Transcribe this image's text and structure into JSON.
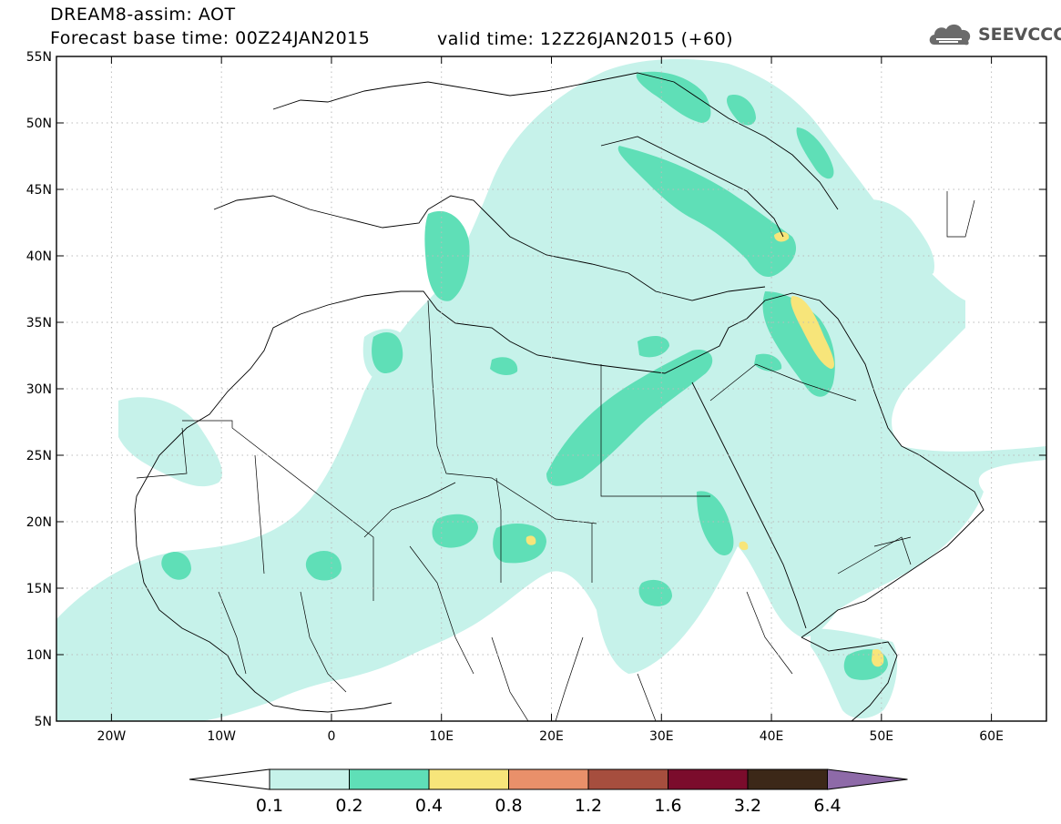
{
  "header": {
    "title_line1": "DREAM8-assim: AOT",
    "title_line2": "Forecast base time: 00Z24JAN2015",
    "valid_text": "valid time: 12Z26JAN2015 (+60)",
    "logo_text": "SEEVCCC",
    "logo_icon": "cloud-icon"
  },
  "map": {
    "lat_labels": [
      "55N",
      "50N",
      "45N",
      "40N",
      "35N",
      "30N",
      "25N",
      "20N",
      "15N",
      "10N",
      "5N"
    ],
    "lat_values": [
      55,
      50,
      45,
      40,
      35,
      30,
      25,
      20,
      15,
      10,
      5
    ],
    "lon_labels": [
      "20W",
      "10W",
      "0",
      "10E",
      "20E",
      "30E",
      "40E",
      "50E",
      "60E"
    ],
    "lon_values": [
      -20,
      -10,
      0,
      10,
      20,
      30,
      40,
      50,
      60
    ],
    "lon_range": [
      -25,
      65
    ],
    "lat_range": [
      5,
      55
    ],
    "grid": true
  },
  "colorbar": {
    "labels": [
      "0.1",
      "0.2",
      "0.4",
      "0.8",
      "1.2",
      "1.6",
      "3.2",
      "6.4"
    ],
    "colors": [
      "#ffffff",
      "#c6f2ea",
      "#5fdfb7",
      "#f7e57a",
      "#e9906a",
      "#a64e3e",
      "#7b0c2c",
      "#3c2818",
      "#8e6aa8"
    ]
  }
}
